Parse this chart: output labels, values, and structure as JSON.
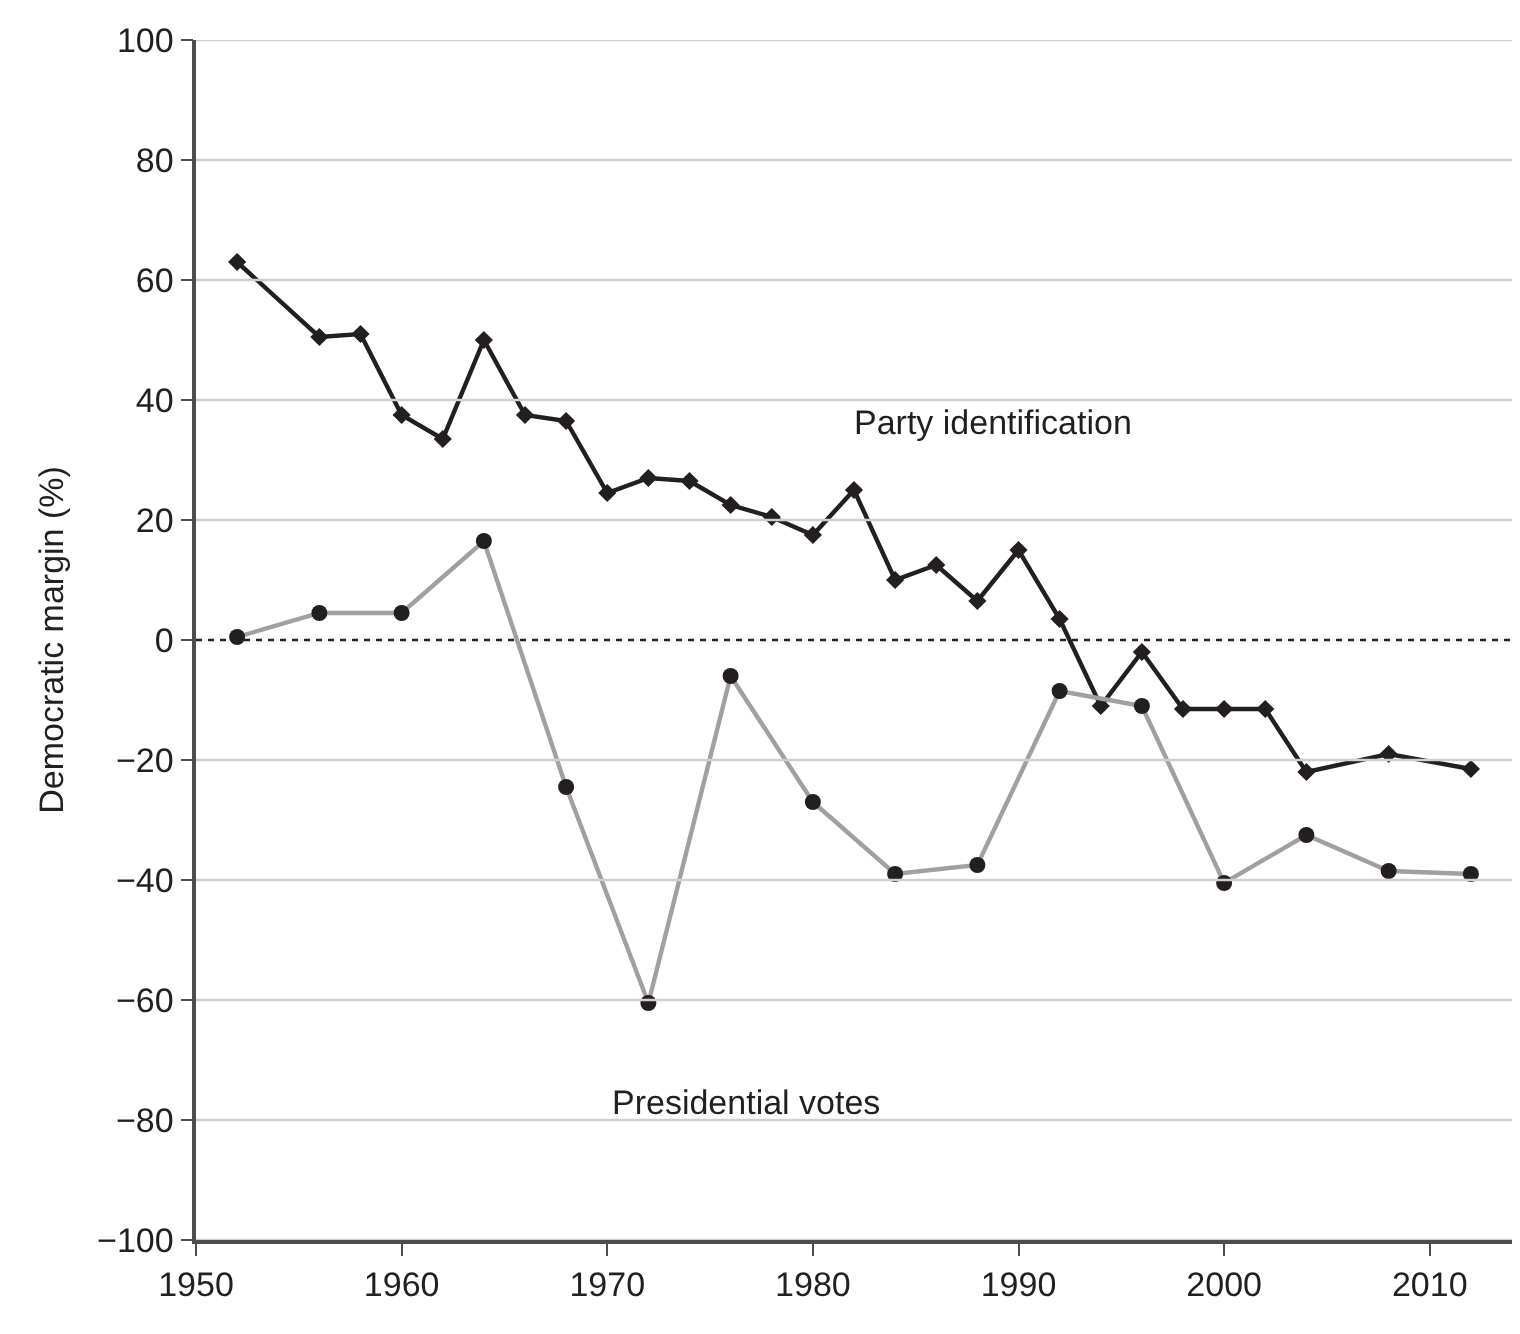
{
  "chart_data": {
    "type": "line",
    "ylabel": "Democratic margin (%)",
    "xlim": [
      1950,
      2014
    ],
    "xticks": [
      1950,
      1960,
      1970,
      1980,
      1990,
      2000,
      2010
    ],
    "ylim": [
      -100,
      100
    ],
    "yticks": [
      {
        "value": -100,
        "label": "−100"
      },
      {
        "value": -80,
        "label": "−80"
      },
      {
        "value": -60,
        "label": "−60"
      },
      {
        "value": -40,
        "label": "−40"
      },
      {
        "value": -20,
        "label": "−20"
      },
      0,
      20,
      40,
      60,
      80,
      100
    ],
    "grid": "y",
    "legend": false,
    "ref_lines": [
      {
        "axis": "y",
        "value": 0,
        "color": "#231f20",
        "line_style": "dotted"
      }
    ],
    "series": [
      {
        "name": "Party identification",
        "color": "#231f20",
        "marker": "diamond",
        "x": [
          1952,
          1956,
          1958,
          1960,
          1962,
          1964,
          1966,
          1968,
          1970,
          1972,
          1974,
          1976,
          1978,
          1980,
          1982,
          1984,
          1986,
          1988,
          1990,
          1992,
          1994,
          1996,
          1998,
          2000,
          2002,
          2004,
          2008,
          2012
        ],
        "values": [
          63,
          50.5,
          51,
          37.5,
          33.5,
          50,
          37.5,
          36.5,
          24.5,
          27,
          26.5,
          22.5,
          20.5,
          17.5,
          25,
          10,
          12.5,
          6.5,
          15,
          3.5,
          -11,
          -2,
          -11.5,
          -11.5,
          -11.5,
          -22,
          -19,
          -21.5
        ]
      },
      {
        "name": "Presidential votes",
        "color": "#a0a0a0",
        "marker": "circle",
        "x": [
          1952,
          1956,
          1960,
          1964,
          1968,
          1972,
          1976,
          1980,
          1984,
          1988,
          1992,
          1996,
          2000,
          2004,
          2008,
          2012
        ],
        "values": [
          0.5,
          4.5,
          4.5,
          16.5,
          -24.5,
          -60.5,
          -6,
          -27,
          -39,
          -37.5,
          -8.5,
          -11,
          -40.5,
          -32.5,
          -38.5,
          -39
        ]
      }
    ]
  }
}
